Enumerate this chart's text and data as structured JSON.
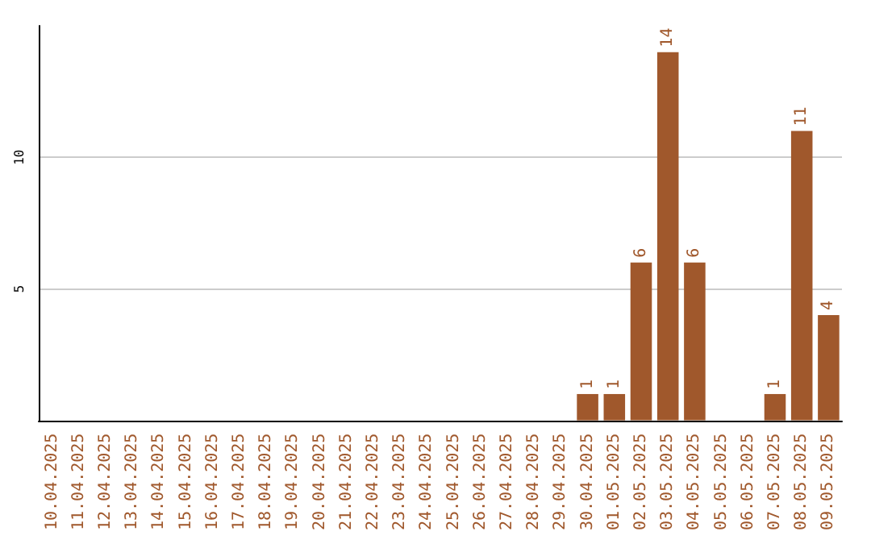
{
  "chart_data": {
    "type": "bar",
    "categories": [
      "10.04.2025",
      "11.04.2025",
      "12.04.2025",
      "13.04.2025",
      "14.04.2025",
      "15.04.2025",
      "16.04.2025",
      "17.04.2025",
      "18.04.2025",
      "19.04.2025",
      "20.04.2025",
      "21.04.2025",
      "22.04.2025",
      "23.04.2025",
      "24.04.2025",
      "25.04.2025",
      "26.04.2025",
      "27.04.2025",
      "28.04.2025",
      "29.04.2025",
      "30.04.2025",
      "01.05.2025",
      "02.05.2025",
      "03.05.2025",
      "04.05.2025",
      "05.05.2025",
      "06.05.2025",
      "07.05.2025",
      "08.05.2025",
      "09.05.2025"
    ],
    "values": [
      0,
      0,
      0,
      0,
      0,
      0,
      0,
      0,
      0,
      0,
      0,
      0,
      0,
      0,
      0,
      0,
      0,
      0,
      0,
      0,
      1,
      1,
      6,
      14,
      6,
      0,
      0,
      1,
      11,
      4
    ],
    "value_labels": [
      null,
      null,
      null,
      null,
      null,
      null,
      null,
      null,
      null,
      null,
      null,
      null,
      null,
      null,
      null,
      null,
      null,
      null,
      null,
      null,
      "1",
      "1",
      "6",
      "14",
      "6",
      null,
      null,
      "1",
      "11",
      "4"
    ],
    "color": "#a0582c",
    "ylim": [
      0,
      15
    ],
    "yticks": [
      5,
      10
    ],
    "grid": "y"
  }
}
